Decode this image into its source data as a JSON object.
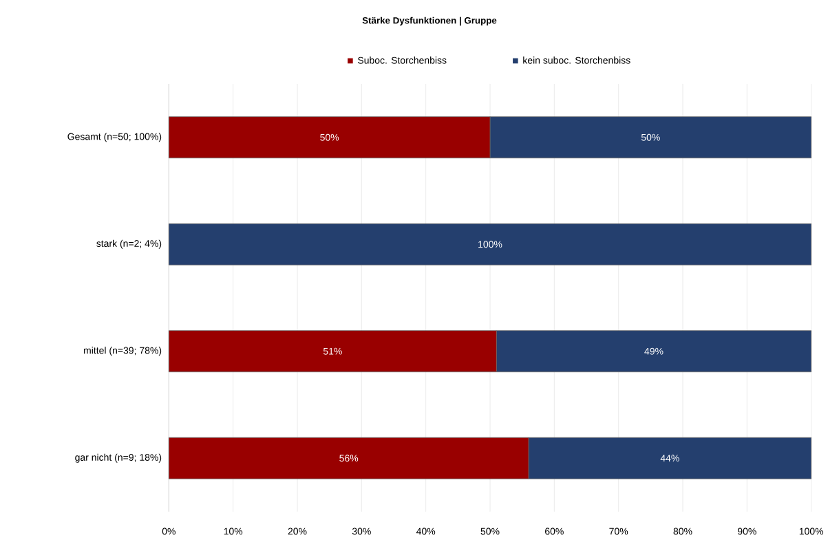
{
  "chart_data": {
    "type": "bar",
    "orientation": "horizontal",
    "stacked": true,
    "title": "Stärke Dysfunktionen | Gruppe",
    "categories": [
      "Gesamt (n=50; 100%)",
      "stark (n=2; 4%)",
      "mittel (n=39; 78%)",
      "gar nicht (n=9; 18%)"
    ],
    "series": [
      {
        "name": "Suboc. Storchenbiss",
        "color": "#990000",
        "values": [
          50,
          0,
          51,
          56
        ],
        "value_labels": [
          "50%",
          null,
          "51%",
          "56%"
        ]
      },
      {
        "name": "kein suboc. Storchenbiss",
        "color": "#243f6e",
        "values": [
          50,
          100,
          49,
          44
        ],
        "value_labels": [
          "50%",
          "100%",
          "49%",
          "44%"
        ]
      }
    ],
    "xlim": [
      0,
      100
    ],
    "xticks": [
      {
        "value": 0,
        "label": "0%"
      },
      {
        "value": 10,
        "label": "10%"
      },
      {
        "value": 20,
        "label": "20%"
      },
      {
        "value": 30,
        "label": "30%"
      },
      {
        "value": 40,
        "label": "40%"
      },
      {
        "value": 50,
        "label": "50%"
      },
      {
        "value": 60,
        "label": "60%"
      },
      {
        "value": 70,
        "label": "70%"
      },
      {
        "value": 80,
        "label": "80%"
      },
      {
        "value": 90,
        "label": "90%"
      },
      {
        "value": 100,
        "label": "100%"
      }
    ],
    "grid": "x",
    "legend": "top"
  }
}
